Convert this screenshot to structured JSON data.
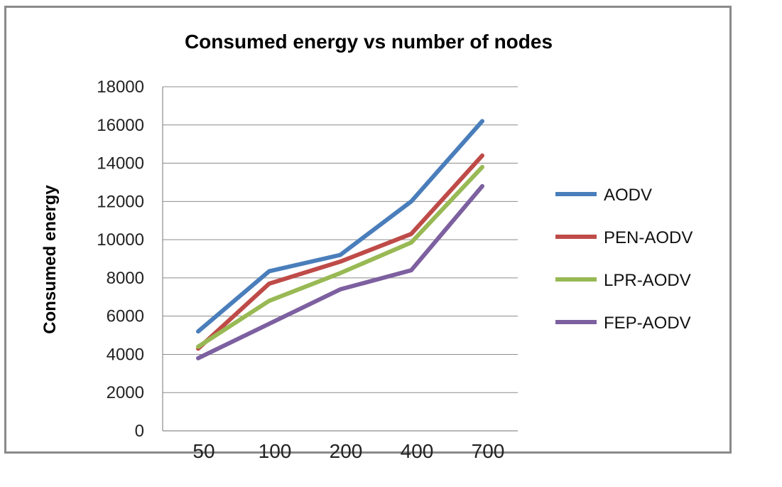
{
  "chart_data": {
    "type": "line",
    "title": "Consumed energy vs number of nodes",
    "xlabel": "",
    "ylabel": "Consumed energy",
    "categories": [
      "50",
      "100",
      "200",
      "400",
      "700"
    ],
    "ylim": [
      0,
      18000
    ],
    "yticks": [
      "0",
      "2000",
      "4000",
      "6000",
      "8000",
      "10000",
      "12000",
      "14000",
      "16000",
      "18000"
    ],
    "grid": true,
    "legend_position": "right",
    "series": [
      {
        "name": "AODV",
        "color": "#4a7ebb",
        "values": [
          5200,
          8350,
          9200,
          12000,
          16200
        ]
      },
      {
        "name": "PEN-AODV",
        "color": "#be4b48",
        "values": [
          4300,
          7700,
          8850,
          10300,
          14400
        ]
      },
      {
        "name": "LPR-AODV",
        "color": "#98b954",
        "values": [
          4400,
          6800,
          8250,
          9850,
          13800
        ]
      },
      {
        "name": "FEP-AODV",
        "color": "#7d60a0",
        "values": [
          3800,
          5600,
          7400,
          8400,
          12800
        ]
      }
    ]
  }
}
